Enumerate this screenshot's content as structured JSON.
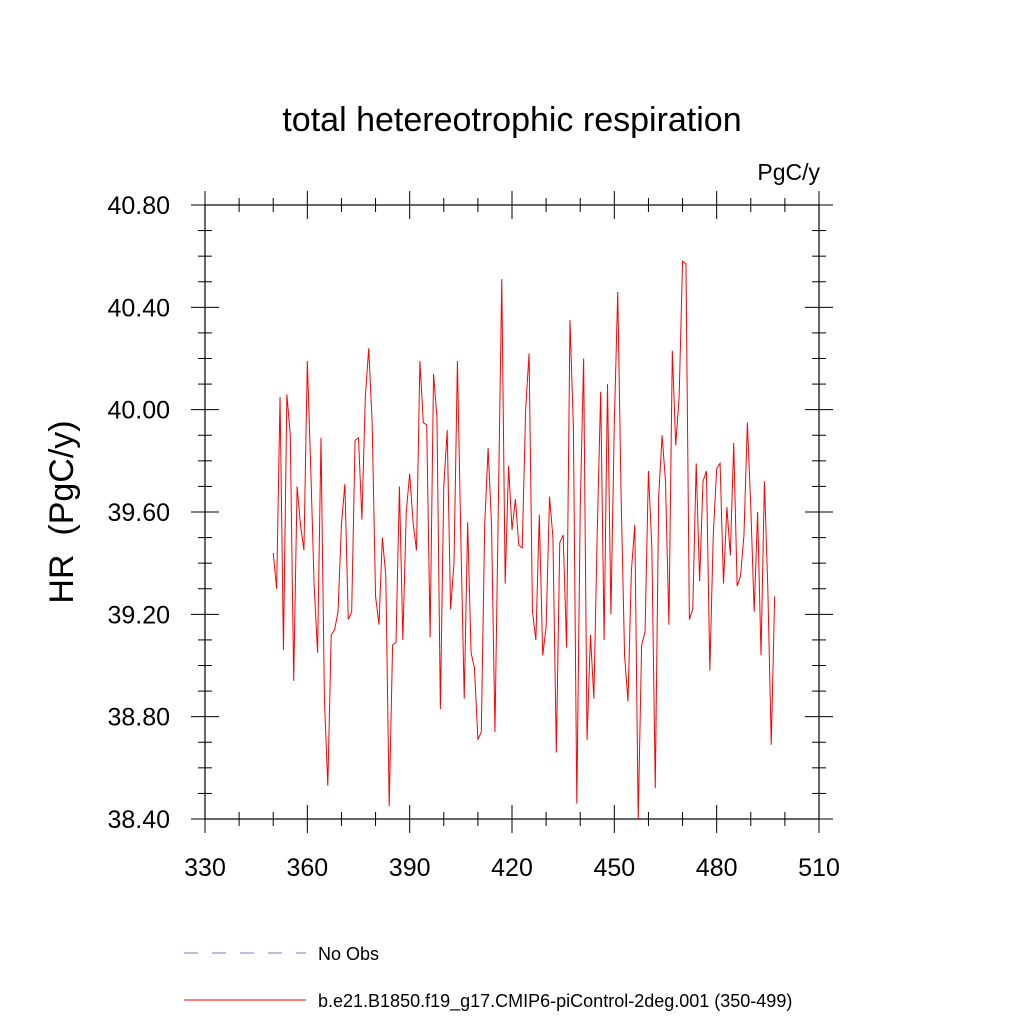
{
  "chart_data": {
    "type": "line",
    "title": "total hetereotrophic respiration",
    "units_label": "PgC/y",
    "ylabel": "HR  (PgC/y)",
    "xlabel": "",
    "xlim": [
      330,
      510
    ],
    "ylim": [
      38.4,
      40.8
    ],
    "x_ticks": [
      330,
      360,
      390,
      420,
      450,
      480,
      510
    ],
    "x_tick_labels": [
      "330",
      "360",
      "390",
      "420",
      "450",
      "480",
      "510"
    ],
    "y_ticks": [
      38.4,
      38.8,
      39.2,
      39.6,
      40.0,
      40.4,
      40.8
    ],
    "y_tick_labels": [
      "38.40",
      "38.80",
      "39.20",
      "39.60",
      "40.00",
      "40.40",
      "40.80"
    ],
    "x_minor_step": 10,
    "y_minor_step": 0.1,
    "series": [
      {
        "name": "b.e21.B1850.f19_g17.CMIP6-piControl-2deg.001 (350-499)",
        "color": "#ff0000",
        "style": "solid",
        "x_start": 350,
        "x_step": 1,
        "values": [
          39.44,
          39.3,
          40.05,
          39.06,
          40.06,
          39.9,
          38.94,
          39.7,
          39.55,
          39.45,
          40.19,
          39.77,
          39.31,
          39.05,
          39.89,
          38.87,
          38.53,
          39.12,
          39.14,
          39.21,
          39.55,
          39.71,
          39.18,
          39.21,
          39.88,
          39.89,
          39.57,
          40.05,
          40.24,
          39.95,
          39.27,
          39.16,
          39.5,
          39.35,
          38.45,
          39.08,
          39.09,
          39.7,
          39.1,
          39.6,
          39.75,
          39.56,
          39.45,
          40.19,
          39.95,
          39.94,
          39.11,
          40.14,
          39.97,
          38.83,
          39.7,
          39.92,
          39.22,
          39.4,
          40.19,
          39.5,
          38.87,
          39.56,
          39.05,
          38.99,
          38.71,
          38.74,
          39.55,
          39.85,
          39.55,
          38.74,
          39.63,
          40.51,
          39.32,
          39.78,
          39.53,
          39.65,
          39.47,
          39.46,
          40.0,
          40.22,
          39.21,
          39.1,
          39.59,
          39.04,
          39.15,
          39.66,
          39.5,
          38.66,
          39.48,
          39.51,
          39.07,
          40.35,
          39.93,
          38.46,
          39.61,
          40.2,
          38.71,
          39.12,
          38.87,
          39.53,
          40.07,
          39.1,
          40.1,
          39.2,
          39.95,
          40.46,
          39.65,
          39.04,
          38.86,
          39.37,
          39.55,
          38.4,
          39.08,
          39.13,
          39.76,
          39.46,
          38.52,
          39.66,
          39.9,
          39.72,
          39.16,
          40.23,
          39.86,
          40.05,
          40.58,
          40.57,
          39.18,
          39.22,
          39.79,
          39.33,
          39.72,
          39.76,
          38.98,
          39.51,
          39.77,
          39.79,
          39.32,
          39.62,
          39.43,
          39.87,
          39.31,
          39.35,
          39.51,
          39.95,
          39.62,
          39.21,
          39.6,
          39.04,
          39.72,
          39.3,
          38.69,
          39.27
        ]
      }
    ],
    "legend": [
      {
        "label": "No Obs",
        "color": "#7777cc",
        "style": "dashed"
      },
      {
        "label": "b.e21.B1850.f19_g17.CMIP6-piControl-2deg.001 (350-499)",
        "color": "#ff0000",
        "style": "solid"
      }
    ],
    "legend_position": "bottom"
  }
}
